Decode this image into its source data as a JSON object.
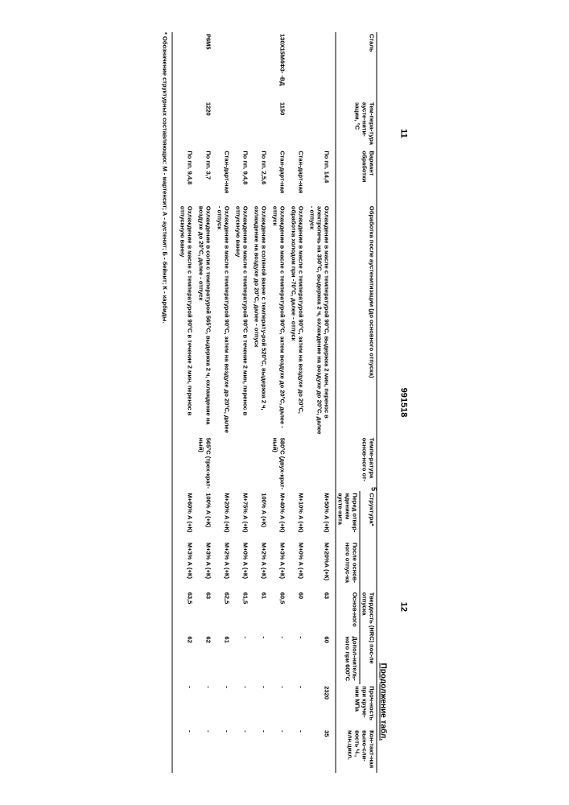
{
  "page_left": "11",
  "doc_number": "991518",
  "page_right": "12",
  "continuation": "Продолжение табл.",
  "top_digit": "5",
  "headers": {
    "steel": "Сталь",
    "aust_temp": "Тем-пера-тура аусте-нити-зации, °С",
    "variant": "Вариант обработки",
    "process": "Обработка после аустенитизации (до основного отпуска)",
    "temp2": "Темпе-ратура основ-ного от-",
    "structure": "Структура*",
    "struct_pre": "Перед отвер-ждением аусте-нита",
    "struct_post": "После основ-ного отпус-ка",
    "hrc": "Твердость (HRС) пос-ле отпуска",
    "hrc_basic": "Основ-ного",
    "hrc_add": "Допол-нитель-ного при 600°С",
    "strength": "Проч-ность при круче-нии МПа",
    "contact": "Кон-такт-ная выно-сли-вость Ч., млн.цикл."
  },
  "rows": [
    {
      "steel": "",
      "temp": "",
      "variant": "По пп. 14,4",
      "process": "Охлаждение в масле с температурой 90°С, выдержка 2 мин, перенос в электропечь на 350°С, выдержка 2 ч, охлаждение на воздухе до 20°С, далее - отпуск",
      "temp2": "",
      "struct1": "М+50% А (+К)",
      "struct2": "М+20%А (+К)",
      "hrc1": "63",
      "hrc2": "60",
      "strength": "2320",
      "contact": "35"
    },
    {
      "steel": "",
      "temp": "",
      "variant": "Стан-дарт-ная",
      "process": "Охлаждение в масле с температурой 90°С, затем на воздухе до 20°С, обработка холодом при -70°С, далее - отпуск",
      "temp2": "",
      "struct1": "М+10% А (+К)",
      "struct2": "М+0% А (+К)",
      "hrc1": "60",
      "hrc2": "-",
      "strength": "-",
      "contact": "-"
    },
    {
      "steel": "130Х15М4Ф3-  -ВД",
      "temp": "1150",
      "variant": "Стан-дарт-ная",
      "process": "Охлаждение в масле с температурой 90°С, затем воздухе до 20°С, далее - отпуск",
      "temp2": "580°С (двух-крат-ный)",
      "struct1": "М+40% А (+К)",
      "struct2": "М+3% А (+К)",
      "hrc1": "60,5",
      "hrc2": "-",
      "strength": "-",
      "contact": "-"
    },
    {
      "steel": "",
      "temp": "",
      "variant": "По пп. 2,5,6",
      "process": "Охлаждение в соляной ванне с температу-рой 520°С, выдержка 2 ч, охлаждение на воздухе до 20°С, далее - отпуск",
      "temp2": "",
      "struct1": "100% А (+К)",
      "struct2": "М+2% А (+К)",
      "hrc1": "61",
      "hrc2": "-",
      "strength": "-",
      "contact": "-"
    },
    {
      "steel": "",
      "temp": "",
      "variant": "По пп. 9,4,8",
      "process": "Охлаждение в масле с температурой 90°С в течение 2 мин, перенос в отпускную ванну",
      "temp2": "",
      "struct1": "М+75% А (+К)",
      "struct2": "М+0% А (+К)",
      "hrc1": "61,5",
      "hrc2": "-",
      "strength": "-",
      "contact": "-"
    },
    {
      "steel": "",
      "temp": "",
      "variant": "Стан-дарт-ная",
      "process": "Охлаждение в масле с температурой 90°С, затем на воздухе до 20°С, далее - отпуск",
      "temp2": "",
      "struct1": "М+20% А (+К)",
      "struct2": "М+2% А (+К)",
      "hrc1": "62,5",
      "hrc2": "61",
      "strength": "-",
      "contact": "-"
    },
    {
      "steel": "Р6М5",
      "temp": "1220",
      "variant": "По пп. 3,7",
      "process": "Охлаждение в соли с температурой 565°С, выдержка 2 ч, охлаждение на воздухе до 20°С, далее - отпуск",
      "temp2": "565°С (трех-крат-ный)",
      "struct1": "100% А (+К)",
      "struct2": "М+3% А (+К)",
      "hrc1": "63",
      "hrc2": "62",
      "strength": "-",
      "contact": "-"
    },
    {
      "steel": "",
      "temp": "",
      "variant": "По пп. 9,4,8",
      "process": "Охлаждение в масле с температурой 90°С в течение 2 мин, перенос в отпускную ванну",
      "temp2": "",
      "struct1": "М+60% А (+К)",
      "struct2": "М+3% А (+К)",
      "hrc1": "63,5",
      "hrc2": "62",
      "strength": "-",
      "contact": "-"
    }
  ],
  "footnote": "* Обозначение структурных составляющих: М - мартенсит; А - аустенит; Б - бейнит; К - карбиды."
}
